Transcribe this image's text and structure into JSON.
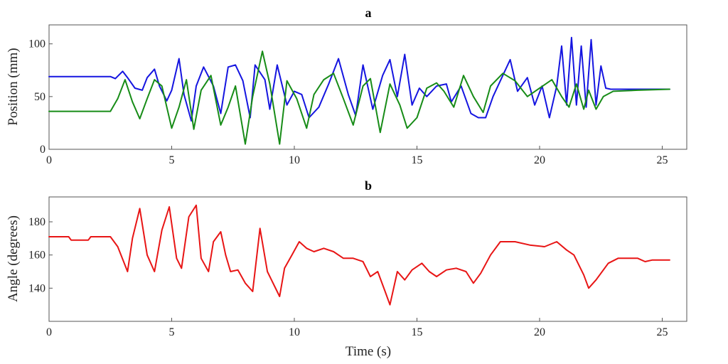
{
  "chart_data": [
    {
      "type": "line",
      "title": "a",
      "xlabel": "",
      "ylabel": "Position (mm)",
      "xlim": [
        0,
        26
      ],
      "ylim": [
        0,
        118
      ],
      "xticks": [
        0,
        5,
        10,
        15,
        20,
        25
      ],
      "yticks": [
        0,
        50,
        100
      ],
      "grid": false,
      "series": [
        {
          "color": "#1515e0",
          "x": [
            0,
            2.5,
            2.7,
            3.0,
            3.2,
            3.5,
            3.8,
            4.0,
            4.3,
            4.5,
            4.8,
            5.0,
            5.3,
            5.5,
            5.8,
            6.0,
            6.3,
            6.7,
            7.0,
            7.3,
            7.6,
            7.9,
            8.2,
            8.4,
            8.8,
            9.0,
            9.3,
            9.7,
            10.0,
            10.3,
            10.6,
            11.0,
            11.4,
            11.8,
            12.2,
            12.5,
            12.8,
            13.2,
            13.6,
            13.9,
            14.2,
            14.5,
            14.8,
            15.1,
            15.4,
            15.8,
            16.2,
            16.4,
            16.8,
            17.2,
            17.5,
            17.8,
            18.1,
            18.4,
            18.8,
            19.1,
            19.5,
            19.8,
            20.1,
            20.4,
            20.7,
            20.9,
            21.1,
            21.3,
            21.5,
            21.7,
            21.9,
            22.1,
            22.3,
            22.5,
            22.7,
            22.9,
            23.2,
            24.0,
            25.3
          ],
          "y": [
            69,
            69,
            67,
            74,
            68,
            58,
            56,
            68,
            76,
            60,
            46,
            56,
            86,
            52,
            27,
            60,
            78,
            60,
            34,
            78,
            80,
            65,
            30,
            80,
            66,
            38,
            80,
            42,
            55,
            52,
            30,
            40,
            62,
            86,
            52,
            32,
            80,
            38,
            70,
            85,
            50,
            90,
            42,
            58,
            50,
            60,
            62,
            45,
            60,
            34,
            30,
            30,
            50,
            65,
            85,
            55,
            68,
            42,
            60,
            30,
            60,
            98,
            42,
            106,
            42,
            98,
            40,
            104,
            42,
            79,
            58,
            57,
            57,
            57,
            57
          ]
        },
        {
          "color": "#178c17",
          "x": [
            0,
            2.5,
            2.8,
            3.1,
            3.4,
            3.7,
            4.0,
            4.3,
            4.6,
            5.0,
            5.3,
            5.6,
            5.9,
            6.2,
            6.6,
            7.0,
            7.3,
            7.6,
            8.0,
            8.3,
            8.7,
            9.0,
            9.4,
            9.7,
            10.1,
            10.5,
            10.8,
            11.2,
            11.6,
            12.0,
            12.4,
            12.8,
            13.1,
            13.5,
            13.9,
            14.3,
            14.6,
            15.0,
            15.4,
            15.8,
            16.1,
            16.5,
            16.9,
            17.3,
            17.7,
            18.0,
            18.5,
            19.0,
            19.5,
            20.0,
            20.5,
            20.9,
            21.2,
            21.5,
            21.8,
            22.0,
            22.3,
            22.6,
            23.0,
            24.0,
            25.3
          ],
          "y": [
            36,
            36,
            48,
            66,
            45,
            29,
            48,
            66,
            60,
            20,
            40,
            66,
            19,
            56,
            70,
            23,
            40,
            60,
            5,
            50,
            93,
            62,
            5,
            65,
            48,
            20,
            52,
            66,
            72,
            48,
            23,
            60,
            67,
            16,
            62,
            42,
            20,
            30,
            58,
            63,
            55,
            40,
            70,
            50,
            35,
            60,
            72,
            65,
            50,
            58,
            66,
            50,
            40,
            62,
            38,
            56,
            38,
            50,
            55,
            56,
            57
          ]
        }
      ]
    },
    {
      "type": "line",
      "title": "b",
      "xlabel": "Time (s)",
      "ylabel": "Angle (degrees)",
      "xlim": [
        0,
        26
      ],
      "ylim": [
        120,
        195
      ],
      "xticks": [
        0,
        5,
        10,
        15,
        20,
        25
      ],
      "yticks": [
        140,
        160,
        180
      ],
      "grid": false,
      "series": [
        {
          "color": "#e81515",
          "x": [
            0,
            0.8,
            0.9,
            1.6,
            1.7,
            2.5,
            2.8,
            3.2,
            3.4,
            3.7,
            4.0,
            4.3,
            4.6,
            4.9,
            5.2,
            5.4,
            5.7,
            6.0,
            6.2,
            6.5,
            6.7,
            7.0,
            7.2,
            7.4,
            7.7,
            8.0,
            8.3,
            8.6,
            8.9,
            9.2,
            9.4,
            9.6,
            9.9,
            10.2,
            10.5,
            10.8,
            11.2,
            11.6,
            12.0,
            12.4,
            12.8,
            13.1,
            13.4,
            13.7,
            13.9,
            14.2,
            14.5,
            14.8,
            15.2,
            15.5,
            15.8,
            16.2,
            16.6,
            17.0,
            17.3,
            17.6,
            18.0,
            18.4,
            19.0,
            19.6,
            20.2,
            20.7,
            21.1,
            21.4,
            21.8,
            22.0,
            22.3,
            22.8,
            23.2,
            24.0,
            24.3,
            24.6,
            25.3
          ],
          "y": [
            171,
            171,
            169,
            169,
            171,
            171,
            165,
            150,
            170,
            188,
            160,
            150,
            175,
            189,
            158,
            152,
            183,
            190,
            158,
            150,
            168,
            174,
            160,
            150,
            151,
            143,
            138,
            176,
            150,
            141,
            135,
            152,
            160,
            168,
            164,
            162,
            164,
            162,
            158,
            158,
            156,
            147,
            150,
            138,
            130,
            150,
            145,
            151,
            155,
            150,
            147,
            151,
            152,
            150,
            143,
            149,
            160,
            168,
            168,
            166,
            165,
            168,
            163,
            160,
            148,
            140,
            145,
            155,
            158,
            158,
            156,
            157,
            157
          ]
        }
      ]
    }
  ]
}
